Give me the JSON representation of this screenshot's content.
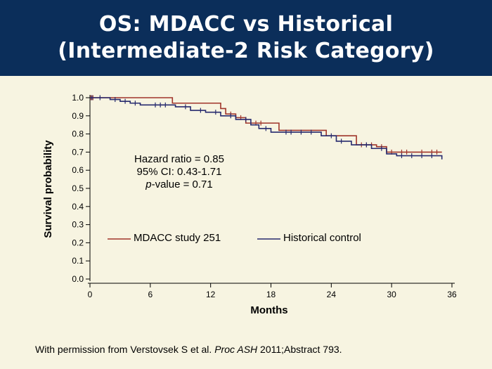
{
  "slide": {
    "title_line1": "OS: MDACC vs Historical",
    "title_line2": "(Intermediate-2 Risk Category)",
    "footer_prefix": "With permission from Verstovsek S et al. ",
    "footer_journal": "Proc ASH",
    "footer_suffix": " 2011;Abstract 793."
  },
  "colors": {
    "title_background": "#0b2e5a",
    "slide_background": "#f7f4e1",
    "mdacc": "#a0352a",
    "historical": "#262a6e"
  },
  "chart_data": {
    "type": "line",
    "line_shape": "step (Kaplan-Meier survival curves with censor ticks)",
    "xlabel": "Months",
    "ylabel": "Survival probability",
    "xlim": [
      0,
      36
    ],
    "ylim": [
      0,
      1.0
    ],
    "x_ticks": [
      0,
      6,
      12,
      18,
      24,
      30,
      36
    ],
    "y_ticks": [
      "0.0",
      "0.1",
      "0.2",
      "0.3",
      "0.4",
      "0.5",
      "0.6",
      "0.7",
      "0.8",
      "0.9",
      "1.0"
    ],
    "grid": false,
    "legend_position": "lower-left, inside plot",
    "annotation": {
      "hazard_ratio": "Hazard ratio = 0.85",
      "ci": "95% CI: 0.43-1.71",
      "p_label": "p",
      "p_rest": "-value = 0.71"
    },
    "series": [
      {
        "name": "MDACC study 251",
        "steps": [
          [
            0,
            1.0
          ],
          [
            8.2,
            0.97
          ],
          [
            13.0,
            0.94
          ],
          [
            13.5,
            0.91
          ],
          [
            14.5,
            0.89
          ],
          [
            15.5,
            0.86
          ],
          [
            18.8,
            0.82
          ],
          [
            23.5,
            0.79
          ],
          [
            26.5,
            0.74
          ],
          [
            28.5,
            0.73
          ],
          [
            29.5,
            0.7
          ],
          [
            35.0,
            0.7
          ]
        ],
        "censored": [
          [
            0.1,
            1.0
          ],
          [
            0.3,
            1.0
          ],
          [
            14.0,
            0.91
          ],
          [
            15.0,
            0.89
          ],
          [
            16.5,
            0.86
          ],
          [
            17.0,
            0.86
          ],
          [
            27.0,
            0.74
          ],
          [
            27.5,
            0.74
          ],
          [
            28.0,
            0.74
          ],
          [
            29.0,
            0.73
          ],
          [
            30.0,
            0.7
          ],
          [
            31.0,
            0.7
          ],
          [
            31.5,
            0.7
          ],
          [
            33.0,
            0.7
          ],
          [
            34.0,
            0.7
          ],
          [
            34.5,
            0.7
          ]
        ]
      },
      {
        "name": "Historical control",
        "steps": [
          [
            0,
            1.0
          ],
          [
            2.0,
            0.99
          ],
          [
            3.0,
            0.98
          ],
          [
            4.0,
            0.97
          ],
          [
            5.0,
            0.96
          ],
          [
            8.5,
            0.95
          ],
          [
            10.0,
            0.93
          ],
          [
            11.5,
            0.92
          ],
          [
            13.0,
            0.9
          ],
          [
            14.5,
            0.88
          ],
          [
            16.0,
            0.85
          ],
          [
            16.8,
            0.83
          ],
          [
            18.0,
            0.81
          ],
          [
            23.0,
            0.79
          ],
          [
            24.5,
            0.76
          ],
          [
            26.0,
            0.74
          ],
          [
            28.0,
            0.72
          ],
          [
            29.5,
            0.69
          ],
          [
            30.5,
            0.68
          ],
          [
            35.0,
            0.66
          ]
        ],
        "censored": [
          [
            0.2,
            1.0
          ],
          [
            1.0,
            1.0
          ],
          [
            2.5,
            0.99
          ],
          [
            3.5,
            0.98
          ],
          [
            4.5,
            0.97
          ],
          [
            6.5,
            0.96
          ],
          [
            7.0,
            0.96
          ],
          [
            7.5,
            0.96
          ],
          [
            9.5,
            0.95
          ],
          [
            11.0,
            0.93
          ],
          [
            12.5,
            0.92
          ],
          [
            14.0,
            0.9
          ],
          [
            15.5,
            0.88
          ],
          [
            17.5,
            0.83
          ],
          [
            19.5,
            0.81
          ],
          [
            20.0,
            0.81
          ],
          [
            21.0,
            0.81
          ],
          [
            22.0,
            0.81
          ],
          [
            24.0,
            0.79
          ],
          [
            25.0,
            0.76
          ],
          [
            27.5,
            0.74
          ],
          [
            29.0,
            0.72
          ],
          [
            31.0,
            0.68
          ],
          [
            32.0,
            0.68
          ],
          [
            33.0,
            0.68
          ],
          [
            34.0,
            0.68
          ]
        ]
      }
    ]
  }
}
